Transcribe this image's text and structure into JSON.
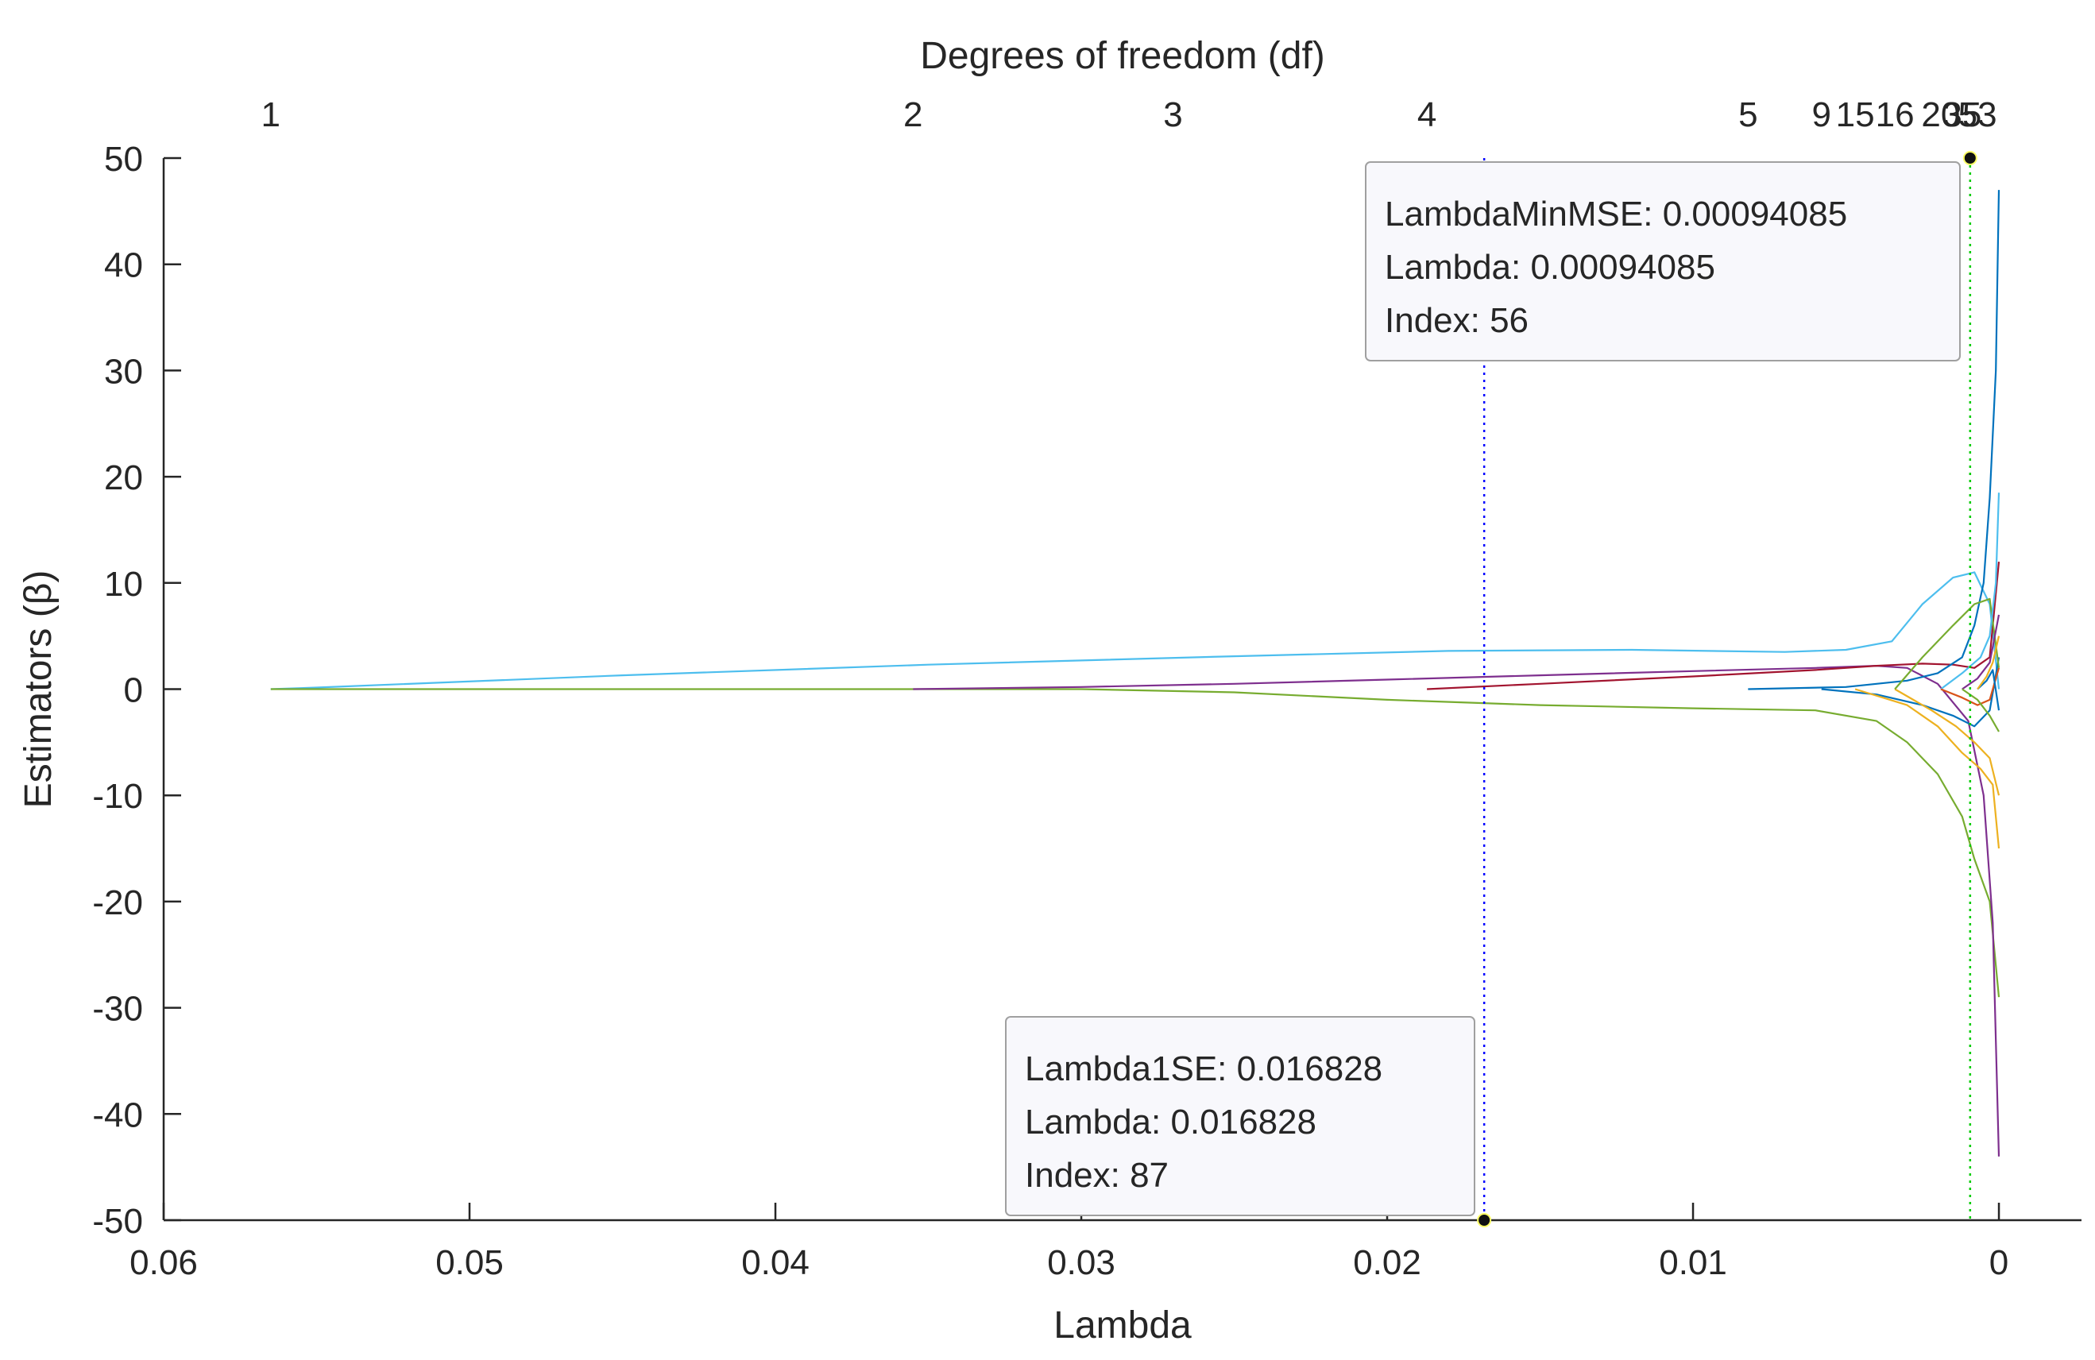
{
  "chart_data": {
    "type": "line",
    "title": "",
    "xlabel": "Lambda",
    "ylabel": "Estimators (β)",
    "top_axis_label": "Degrees of freedom (df)",
    "xlim": [
      0.06,
      -0.0027
    ],
    "ylim": [
      -50,
      50
    ],
    "x_reversed": true,
    "grid": false,
    "x_ticks": [
      0.06,
      0.05,
      0.04,
      0.03,
      0.02,
      0.01,
      0
    ],
    "x_tick_labels": [
      "0.06",
      "0.05",
      "0.04",
      "0.03",
      "0.02",
      "0.01",
      "0"
    ],
    "y_ticks": [
      50,
      40,
      30,
      20,
      10,
      0,
      -10,
      -20,
      -30,
      -40,
      -50
    ],
    "y_tick_labels": [
      "50",
      "40",
      "30",
      "20",
      "10",
      "0",
      "-10",
      "-20",
      "-30",
      "-40",
      "-50"
    ],
    "df_ticks": [
      {
        "lambda": 0.0565,
        "label": "1"
      },
      {
        "lambda": 0.0355,
        "label": "2"
      },
      {
        "lambda": 0.027,
        "label": "3"
      },
      {
        "lambda": 0.0187,
        "label": "4"
      },
      {
        "lambda": 0.0082,
        "label": "5"
      },
      {
        "lambda": 0.0058,
        "label": "9"
      },
      {
        "lambda": 0.0047,
        "label": "15"
      },
      {
        "lambda": 0.0034,
        "label": "16"
      },
      {
        "lambda": 0.0019,
        "label": "20"
      },
      {
        "lambda": 0.0012,
        "label": "35"
      },
      {
        "lambda": 0.0007,
        "label": "53"
      }
    ],
    "reference_lines": [
      {
        "name": "Lambda1SE",
        "lambda": 0.016828,
        "color": "#0000ff",
        "style": "dotted"
      },
      {
        "name": "LambdaMinMSE",
        "lambda": 0.00094085,
        "color": "#00cc00",
        "style": "dotted"
      }
    ],
    "datatips": [
      {
        "name": "lambda-min-mse",
        "anchor": {
          "lambda": 0.00094085,
          "beta": 50
        },
        "lines": [
          "LambdaMinMSE: 0.00094085",
          "Lambda: 0.00094085",
          "Index: 56"
        ]
      },
      {
        "name": "lambda-1se",
        "anchor": {
          "lambda": 0.016828,
          "beta": -50
        },
        "lines": [
          "Lambda1SE: 0.016828",
          "Lambda: 0.016828",
          "Index: 87"
        ]
      }
    ],
    "series": [
      {
        "name": "coef-cyan",
        "color": "#4DBEEE",
        "x": [
          0.0565,
          0.055,
          0.045,
          0.035,
          0.025,
          0.018,
          0.012,
          0.007,
          0.005,
          0.0035,
          0.0025,
          0.0015,
          0.0008,
          0.0003,
          0.0
        ],
        "y": [
          0,
          0.15,
          1.3,
          2.3,
          3.1,
          3.6,
          3.7,
          3.5,
          3.7,
          4.5,
          8,
          10.5,
          11,
          8,
          0
        ]
      },
      {
        "name": "coef-green-main",
        "color": "#77AC30",
        "x": [
          0.0565,
          0.04,
          0.03,
          0.025,
          0.02,
          0.015,
          0.01,
          0.006,
          0.004,
          0.003,
          0.002,
          0.0012,
          0.0008,
          0.0003,
          0.0
        ],
        "y": [
          0,
          0,
          0,
          -0.3,
          -1.0,
          -1.5,
          -1.8,
          -2.0,
          -3.0,
          -5.0,
          -8.0,
          -12.0,
          -16.0,
          -20.0,
          -29.0
        ]
      },
      {
        "name": "coef-purple-main",
        "color": "#7E2F8E",
        "x": [
          0.0355,
          0.03,
          0.025,
          0.02,
          0.015,
          0.01,
          0.006,
          0.004,
          0.003,
          0.002,
          0.001,
          0.0005,
          0.0002,
          0.0
        ],
        "y": [
          0,
          0.2,
          0.5,
          0.9,
          1.3,
          1.7,
          2.0,
          2.2,
          2.0,
          0.5,
          -3.0,
          -10.0,
          -22.0,
          -44.0
        ]
      },
      {
        "name": "coef-red",
        "color": "#A2142F",
        "x": [
          0.0187,
          0.015,
          0.01,
          0.006,
          0.004,
          0.0025,
          0.0015,
          0.0008,
          0.0003,
          0.0
        ],
        "y": [
          0,
          0.5,
          1.2,
          1.8,
          2.2,
          2.4,
          2.3,
          2.0,
          3.0,
          12.0
        ]
      },
      {
        "name": "coef-blue",
        "color": "#0072BD",
        "x": [
          0.0082,
          0.005,
          0.003,
          0.002,
          0.0012,
          0.0008,
          0.0005,
          0.0003,
          0.0001,
          0.0
        ],
        "y": [
          0,
          0.2,
          0.8,
          1.5,
          3.0,
          6.0,
          10.0,
          18.0,
          30.0,
          47.0
        ]
      },
      {
        "name": "coef-blue-2",
        "color": "#0072BD",
        "x": [
          0.0058,
          0.004,
          0.0025,
          0.0015,
          0.0008,
          0.0003,
          0.0
        ],
        "y": [
          0,
          -0.5,
          -1.5,
          -2.5,
          -3.5,
          -2.0,
          3.0
        ]
      },
      {
        "name": "coef-orange-1",
        "color": "#EDB120",
        "x": [
          0.0047,
          0.003,
          0.002,
          0.0012,
          0.0006,
          0.0002,
          0.0
        ],
        "y": [
          0,
          -1.5,
          -3.5,
          -6.0,
          -7.5,
          -9.0,
          -15.0
        ]
      },
      {
        "name": "coef-orange-2",
        "color": "#EDB120",
        "x": [
          0.0034,
          0.0022,
          0.0014,
          0.0008,
          0.0003,
          0.0
        ],
        "y": [
          0,
          -2.0,
          -3.5,
          -5.0,
          -6.5,
          -10.0
        ]
      },
      {
        "name": "coef-green-2",
        "color": "#77AC30",
        "x": [
          0.0034,
          0.0025,
          0.0015,
          0.0008,
          0.0003,
          0.0
        ],
        "y": [
          0,
          3.0,
          6.0,
          8.0,
          8.5,
          2.0
        ]
      },
      {
        "name": "coef-cyan-2",
        "color": "#4DBEEE",
        "x": [
          0.0019,
          0.0012,
          0.0006,
          0.0003,
          0.0001,
          0.0
        ],
        "y": [
          0,
          1.5,
          3.0,
          5.0,
          10.0,
          18.5
        ]
      },
      {
        "name": "coef-red-2",
        "color": "#D95319",
        "x": [
          0.0019,
          0.0012,
          0.0007,
          0.0003,
          0.0
        ],
        "y": [
          0,
          -0.8,
          -1.5,
          -1.0,
          2.0
        ]
      },
      {
        "name": "coef-purple-2",
        "color": "#7E2F8E",
        "x": [
          0.0012,
          0.0007,
          0.0003,
          0.0
        ],
        "y": [
          0,
          1.0,
          2.5,
          7.0
        ]
      },
      {
        "name": "coef-green-3",
        "color": "#77AC30",
        "x": [
          0.0012,
          0.0007,
          0.0003,
          0.0
        ],
        "y": [
          0,
          -1.0,
          -2.5,
          -4.0
        ]
      },
      {
        "name": "coef-blue-3",
        "color": "#0072BD",
        "x": [
          0.0007,
          0.0004,
          0.0002,
          0.0
        ],
        "y": [
          0,
          0.8,
          1.8,
          -2.0
        ]
      },
      {
        "name": "coef-orange-3",
        "color": "#EDB120",
        "x": [
          0.0007,
          0.0004,
          0.0002,
          0.0
        ],
        "y": [
          0,
          1.2,
          2.5,
          5.0
        ]
      }
    ]
  }
}
